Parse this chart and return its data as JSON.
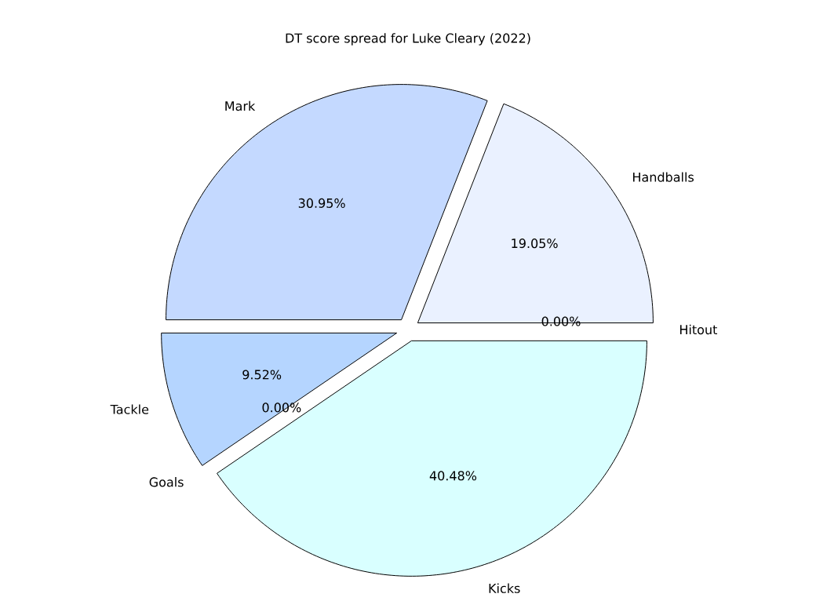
{
  "chart_data": {
    "type": "pie",
    "title": "DT score spread for Luke Cleary (2022)",
    "categories": [
      "Hitout",
      "Handballs",
      "Mark",
      "Tackle",
      "Goals",
      "Kicks"
    ],
    "values": [
      0,
      19.05,
      30.95,
      9.52,
      0,
      40.48
    ],
    "value_labels": [
      "0.00%",
      "19.05%",
      "30.95%",
      "9.52%",
      "0.00%",
      "40.48%"
    ],
    "colors": [
      "#dbe8ff",
      "#eaf1ff",
      "#c4d9ff",
      "#b5d5ff",
      "#c8e0ff",
      "#d9ffff"
    ]
  }
}
